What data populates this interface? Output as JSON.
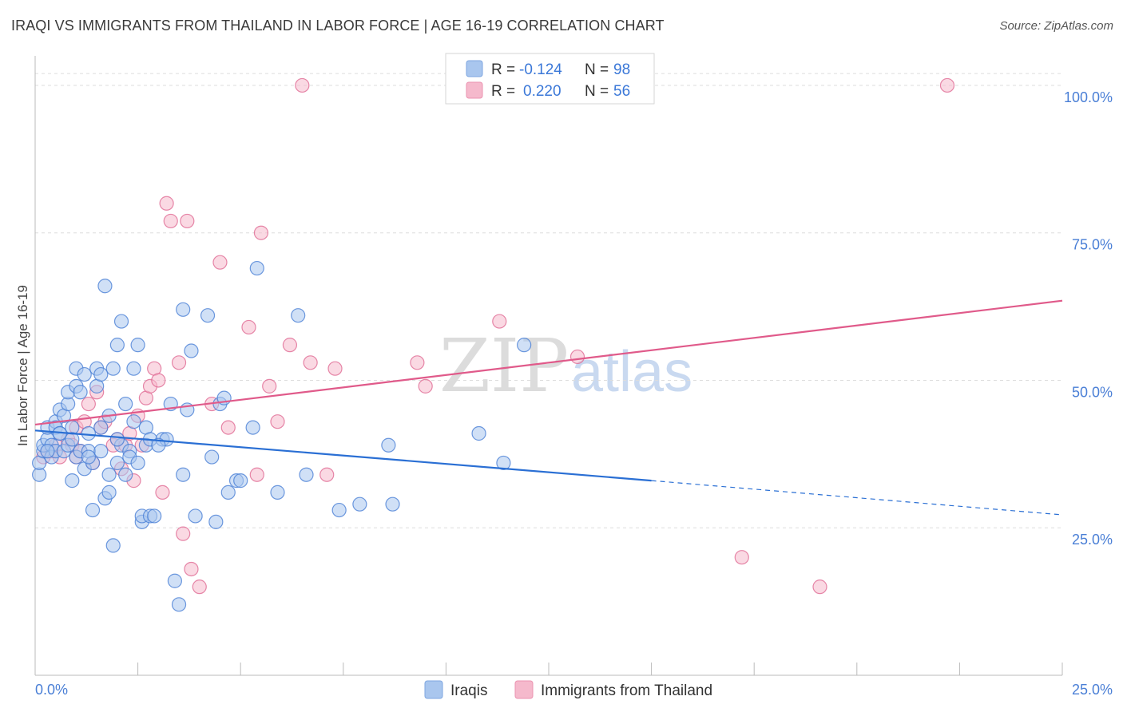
{
  "title": "IRAQI VS IMMIGRANTS FROM THAILAND IN LABOR FORCE | AGE 16-19 CORRELATION CHART",
  "source": "Source: ZipAtlas.com",
  "watermark": {
    "zip": "ZIP",
    "atlas": "atlas"
  },
  "colors": {
    "blue": "#4a7fd6",
    "blue_fill": "#a9c6ee",
    "pink": "#e06a93",
    "pink_fill": "#f5b9cc",
    "grid": "#dddddd"
  },
  "legend": {
    "rows": [
      {
        "r_label": "R =",
        "r_value": "-0.124",
        "n_label": "N =",
        "n_value": "98"
      },
      {
        "r_label": "R =",
        "r_value": "0.220",
        "n_label": "N =",
        "n_value": "56"
      }
    ]
  },
  "bottom_legend": [
    "Iraqis",
    "Immigrants from Thailand"
  ],
  "chart_data": {
    "type": "scatter",
    "title": "IRAQI VS IMMIGRANTS FROM THAILAND IN LABOR FORCE | AGE 16-19 CORRELATION CHART",
    "xlabel": "",
    "ylabel": "In Labor Force | Age 16-19",
    "xlim": [
      0,
      25
    ],
    "ylim": [
      0,
      105
    ],
    "x_tick_labels": [
      "0.0%",
      "25.0%"
    ],
    "y_ticks": [
      25,
      50,
      75,
      100
    ],
    "y_tick_labels": [
      "25.0%",
      "50.0%",
      "75.0%",
      "100.0%"
    ],
    "series": [
      {
        "name": "Iraqis",
        "color": "blue",
        "r": -0.124,
        "n": 98,
        "trend": {
          "x0": 0,
          "y0": 41.5,
          "x1": 15,
          "y1": 33.0,
          "dash_to_x": 25,
          "dash_to_y": 27.2
        },
        "points": [
          [
            0.1,
            34
          ],
          [
            0.1,
            36
          ],
          [
            0.2,
            38
          ],
          [
            0.2,
            39
          ],
          [
            0.3,
            40
          ],
          [
            0.3,
            42
          ],
          [
            0.4,
            39
          ],
          [
            0.4,
            37
          ],
          [
            0.5,
            38
          ],
          [
            0.5,
            43
          ],
          [
            0.5,
            42
          ],
          [
            0.6,
            41
          ],
          [
            0.6,
            45
          ],
          [
            0.7,
            44
          ],
          [
            0.7,
            38
          ],
          [
            0.8,
            39
          ],
          [
            0.8,
            46
          ],
          [
            0.8,
            48
          ],
          [
            0.9,
            42
          ],
          [
            0.9,
            33
          ],
          [
            1.0,
            37
          ],
          [
            1.0,
            49
          ],
          [
            1.0,
            52
          ],
          [
            1.1,
            38
          ],
          [
            1.1,
            48
          ],
          [
            1.2,
            35
          ],
          [
            1.2,
            51
          ],
          [
            1.3,
            38
          ],
          [
            1.3,
            41
          ],
          [
            1.4,
            28
          ],
          [
            1.4,
            36
          ],
          [
            1.5,
            49
          ],
          [
            1.5,
            52
          ],
          [
            1.6,
            42
          ],
          [
            1.6,
            38
          ],
          [
            1.7,
            30
          ],
          [
            1.7,
            66
          ],
          [
            1.8,
            44
          ],
          [
            1.8,
            31
          ],
          [
            1.8,
            34
          ],
          [
            1.9,
            22
          ],
          [
            1.9,
            52
          ],
          [
            2.0,
            56
          ],
          [
            2.0,
            36
          ],
          [
            2.1,
            60
          ],
          [
            2.1,
            39
          ],
          [
            2.2,
            34
          ],
          [
            2.2,
            46
          ],
          [
            2.3,
            38
          ],
          [
            2.3,
            37
          ],
          [
            2.4,
            43
          ],
          [
            2.4,
            52
          ],
          [
            2.5,
            56
          ],
          [
            2.5,
            36
          ],
          [
            2.6,
            26
          ],
          [
            2.6,
            27
          ],
          [
            2.7,
            42
          ],
          [
            2.7,
            39
          ],
          [
            2.8,
            27
          ],
          [
            2.9,
            27
          ],
          [
            3.1,
            40
          ],
          [
            3.2,
            40
          ],
          [
            3.3,
            46
          ],
          [
            3.4,
            16
          ],
          [
            3.5,
            12
          ],
          [
            3.6,
            34
          ],
          [
            3.6,
            62
          ],
          [
            3.7,
            45
          ],
          [
            3.8,
            55
          ],
          [
            3.9,
            27
          ],
          [
            4.2,
            61
          ],
          [
            4.3,
            37
          ],
          [
            4.4,
            26
          ],
          [
            4.5,
            46
          ],
          [
            4.6,
            47
          ],
          [
            4.7,
            31
          ],
          [
            4.9,
            33
          ],
          [
            5.0,
            33
          ],
          [
            5.3,
            42
          ],
          [
            5.4,
            69
          ],
          [
            5.9,
            31
          ],
          [
            6.4,
            61
          ],
          [
            6.6,
            34
          ],
          [
            7.4,
            28
          ],
          [
            7.9,
            29
          ],
          [
            8.6,
            39
          ],
          [
            8.7,
            29
          ],
          [
            10.8,
            41
          ],
          [
            11.4,
            36
          ],
          [
            11.9,
            56
          ],
          [
            0.3,
            38
          ],
          [
            0.6,
            41
          ],
          [
            1.3,
            37
          ],
          [
            0.9,
            40
          ],
          [
            1.6,
            51
          ],
          [
            2.0,
            40
          ],
          [
            2.8,
            40
          ],
          [
            3.0,
            39
          ]
        ]
      },
      {
        "name": "Immigrants from Thailand",
        "color": "pink",
        "r": 0.22,
        "n": 56,
        "trend": {
          "x0": 0,
          "y0": 42.5,
          "x1": 25,
          "y1": 63.5
        },
        "points": [
          [
            0.2,
            37
          ],
          [
            0.3,
            38
          ],
          [
            0.4,
            38
          ],
          [
            0.5,
            39
          ],
          [
            0.6,
            37
          ],
          [
            0.8,
            40
          ],
          [
            0.9,
            39
          ],
          [
            1.0,
            42
          ],
          [
            1.1,
            38
          ],
          [
            1.2,
            43
          ],
          [
            1.3,
            46
          ],
          [
            1.4,
            36
          ],
          [
            1.5,
            48
          ],
          [
            1.6,
            42
          ],
          [
            1.7,
            43
          ],
          [
            1.9,
            39
          ],
          [
            2.0,
            40
          ],
          [
            2.1,
            35
          ],
          [
            2.2,
            39
          ],
          [
            2.3,
            41
          ],
          [
            2.4,
            33
          ],
          [
            2.5,
            44
          ],
          [
            2.6,
            39
          ],
          [
            2.7,
            47
          ],
          [
            2.8,
            49
          ],
          [
            2.9,
            52
          ],
          [
            3.0,
            50
          ],
          [
            3.1,
            31
          ],
          [
            3.2,
            80
          ],
          [
            3.3,
            77
          ],
          [
            3.5,
            53
          ],
          [
            3.6,
            24
          ],
          [
            3.7,
            77
          ],
          [
            3.8,
            18
          ],
          [
            4.0,
            15
          ],
          [
            4.3,
            46
          ],
          [
            4.5,
            70
          ],
          [
            4.7,
            42
          ],
          [
            5.2,
            59
          ],
          [
            5.4,
            34
          ],
          [
            5.5,
            75
          ],
          [
            5.7,
            49
          ],
          [
            5.9,
            43
          ],
          [
            6.2,
            56
          ],
          [
            6.5,
            100
          ],
          [
            6.7,
            53
          ],
          [
            7.1,
            34
          ],
          [
            7.3,
            52
          ],
          [
            9.3,
            53
          ],
          [
            9.5,
            49
          ],
          [
            11.3,
            60
          ],
          [
            13.2,
            54
          ],
          [
            17.2,
            20
          ],
          [
            19.1,
            15
          ],
          [
            22.2,
            100
          ],
          [
            1.0,
            37
          ]
        ]
      }
    ]
  }
}
